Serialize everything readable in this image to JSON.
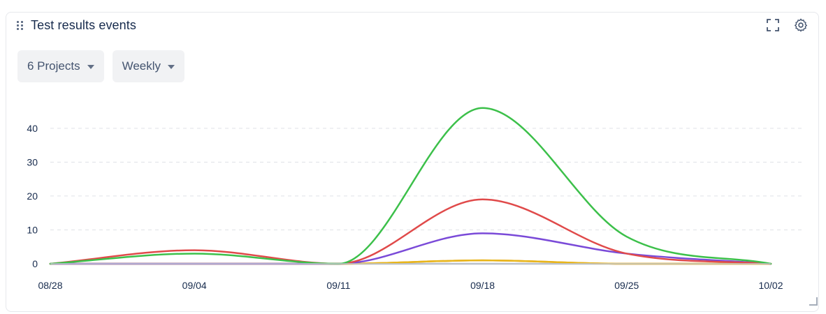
{
  "widget": {
    "title": "Test results events",
    "filters": [
      {
        "label": "6 Projects"
      },
      {
        "label": "Weekly"
      }
    ],
    "icons": [
      "drag-handle-icon",
      "fullscreen-icon",
      "settings-gear-icon",
      "resize-handle-icon"
    ]
  },
  "chart_data": {
    "type": "line",
    "x": [
      "08/28",
      "09/04",
      "09/11",
      "09/18",
      "09/25",
      "10/02"
    ],
    "ylim": [
      0,
      48
    ],
    "y_ticks": [
      0,
      10,
      20,
      30,
      40
    ],
    "grid": true,
    "series": [
      {
        "color": "#3cc04a",
        "values": [
          0,
          3,
          0,
          46,
          8,
          0
        ]
      },
      {
        "color": "#e04a4a",
        "values": [
          0,
          4,
          0,
          19,
          3,
          0
        ]
      },
      {
        "color": "#7a4ad8",
        "values": [
          0,
          0,
          0,
          9,
          3,
          0
        ]
      },
      {
        "color": "#e8b61a",
        "values": [
          0,
          0,
          0,
          1,
          0,
          0
        ]
      },
      {
        "color": "#e58a2f",
        "values": [
          0,
          0,
          0,
          1,
          0,
          0
        ]
      },
      {
        "color": "#a8b0bd",
        "values": [
          0,
          0,
          0,
          0,
          0,
          0
        ]
      }
    ]
  }
}
